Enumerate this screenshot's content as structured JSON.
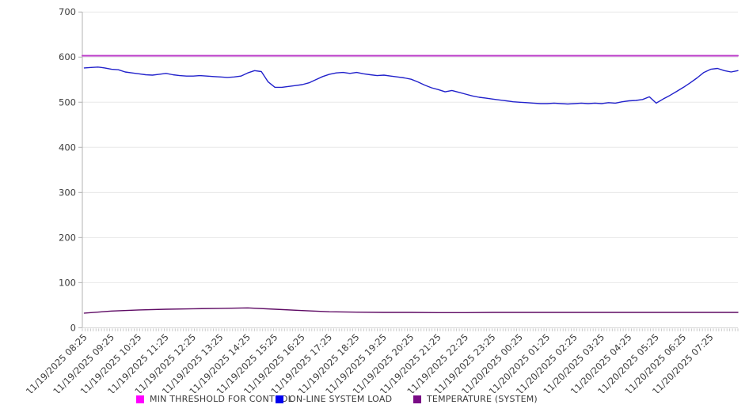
{
  "chart_data": {
    "type": "line",
    "title": "",
    "x_axis": {
      "labels": [
        "11/19/2025 08:25",
        "11/19/2025 09:25",
        "11/19/2025 10:25",
        "11/19/2025 11:25",
        "11/19/2025 12:25",
        "11/19/2025 13:25",
        "11/19/2025 14:25",
        "11/19/2025 15:25",
        "11/19/2025 16:25",
        "11/19/2025 17:25",
        "11/19/2025 18:25",
        "11/19/2025 19:25",
        "11/19/2025 20:25",
        "11/19/2025 21:25",
        "11/19/2025 22:25",
        "11/19/2025 23:25",
        "11/20/2025 00:25",
        "11/20/2025 01:25",
        "11/20/2025 02:25",
        "11/20/2025 03:25",
        "11/20/2025 04:25",
        "11/20/2025 05:25",
        "11/20/2025 06:25",
        "11/20/2025 07:25"
      ],
      "hours_span": 24,
      "minor_tick_count": 240
    },
    "y_axis": {
      "min": 0,
      "max": 700,
      "ticks": [
        0,
        100,
        200,
        300,
        400,
        500,
        600,
        700
      ]
    },
    "grid": "horizontal",
    "legend_position": "bottom",
    "series": [
      {
        "name": "MIN THRESHOLD FOR CONTROL",
        "color": "#bb38c8",
        "legend_color": "#ff00ff",
        "kind": "constant",
        "value": 603
      },
      {
        "name": "ON-LINE SYSTEM LOAD",
        "color": "#2121cb",
        "legend_color": "#0000ee",
        "kind": "sampled",
        "start_hour": 0,
        "interval_hours": 0.25,
        "values": [
          576,
          577,
          578,
          576,
          573,
          572,
          567,
          565,
          563,
          561,
          560,
          562,
          564,
          561,
          559,
          558,
          558,
          559,
          558,
          557,
          556,
          555,
          556,
          558,
          565,
          570,
          568,
          545,
          533,
          533,
          535,
          537,
          539,
          543,
          550,
          557,
          562,
          565,
          566,
          564,
          566,
          563,
          561,
          559,
          560,
          558,
          556,
          554,
          551,
          545,
          538,
          532,
          528,
          523,
          526,
          522,
          518,
          514,
          511,
          509,
          507,
          505,
          503,
          501,
          500,
          499,
          498,
          497,
          497,
          498,
          497,
          496,
          497,
          498,
          497,
          498,
          497,
          499,
          498,
          501,
          503,
          504,
          506,
          512,
          498,
          507,
          515,
          524,
          533,
          543,
          554,
          566,
          573,
          575,
          570,
          567,
          570
        ]
      },
      {
        "name": "TEMPERATURE (SYSTEM)",
        "color": "#5e0a64",
        "legend_color": "#7a0c86",
        "kind": "sampled",
        "start_hour": 0,
        "interval_hours": 1,
        "values": [
          32.5,
          37,
          39.5,
          41,
          42,
          43,
          44,
          41,
          38,
          35.5,
          34.5,
          34,
          34,
          33.5,
          33.5,
          34,
          34,
          34,
          34,
          34,
          34,
          34,
          34,
          34,
          34
        ]
      }
    ]
  }
}
